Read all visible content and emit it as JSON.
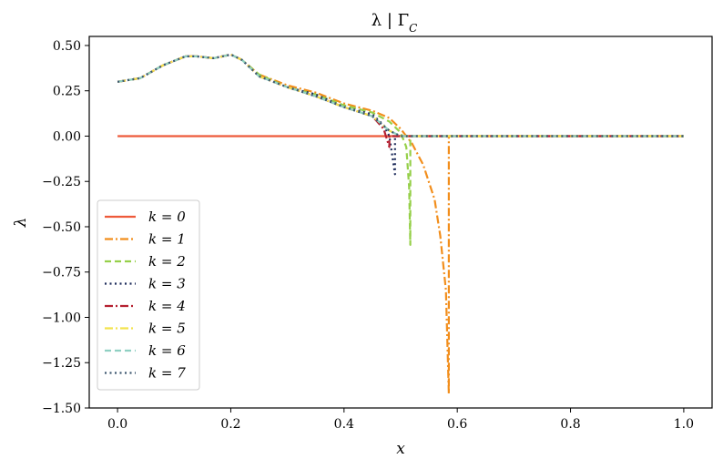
{
  "chart_data": {
    "type": "line",
    "title": "λ | Γ_C",
    "xlabel": "x",
    "ylabel": "λ",
    "xlim": [
      -0.05,
      1.05
    ],
    "ylim": [
      -1.5,
      0.55
    ],
    "grid": false,
    "legend_placement": "lower-left",
    "x_ticks": [
      0.0,
      0.2,
      0.4,
      0.6,
      0.8,
      1.0
    ],
    "x_tick_labels": [
      "0.0",
      "0.2",
      "0.4",
      "0.6",
      "0.8",
      "1.0"
    ],
    "y_ticks": [
      0.5,
      0.25,
      0.0,
      -0.25,
      -0.5,
      -0.75,
      -1.0,
      -1.25,
      -1.5
    ],
    "y_tick_labels": [
      "0.50",
      "0.25",
      "0.00",
      "−0.25",
      "−0.50",
      "−0.75",
      "−1.00",
      "−1.25",
      "−1.50"
    ],
    "series": [
      {
        "name": "k = 0",
        "color": "#ee5a3a",
        "dash": "solid",
        "x": [
          0.0,
          0.25,
          0.5,
          0.75,
          1.0
        ],
        "y": [
          0.0,
          0.0,
          0.0,
          0.0,
          0.0
        ]
      },
      {
        "name": "k = 1",
        "color": "#f28e1c",
        "dash": "dashdot",
        "x": [
          0.0,
          0.04,
          0.08,
          0.12,
          0.14,
          0.17,
          0.2,
          0.22,
          0.25,
          0.3,
          0.35,
          0.4,
          0.45,
          0.48,
          0.5,
          0.52,
          0.54,
          0.56,
          0.57,
          0.58,
          0.585,
          0.585,
          0.6,
          0.7,
          0.8,
          0.9,
          1.0
        ],
        "y": [
          0.3,
          0.32,
          0.39,
          0.44,
          0.44,
          0.43,
          0.45,
          0.42,
          0.34,
          0.28,
          0.24,
          0.18,
          0.14,
          0.1,
          0.04,
          -0.04,
          -0.16,
          -0.35,
          -0.55,
          -0.85,
          -1.42,
          0.0,
          0.0,
          0.0,
          0.0,
          0.0,
          0.0
        ]
      },
      {
        "name": "k = 2",
        "color": "#96d04a",
        "dash": "dashed",
        "x": [
          0.0,
          0.04,
          0.08,
          0.12,
          0.14,
          0.17,
          0.2,
          0.22,
          0.25,
          0.3,
          0.35,
          0.4,
          0.45,
          0.48,
          0.5,
          0.51,
          0.515,
          0.517,
          0.517,
          0.52,
          0.6,
          0.7,
          0.8,
          0.9,
          1.0
        ],
        "y": [
          0.3,
          0.32,
          0.39,
          0.44,
          0.44,
          0.43,
          0.45,
          0.42,
          0.34,
          0.27,
          0.23,
          0.17,
          0.13,
          0.08,
          0.02,
          -0.06,
          -0.28,
          -0.6,
          0.0,
          0.0,
          0.0,
          0.0,
          0.0,
          0.0,
          0.0
        ]
      },
      {
        "name": "k = 3",
        "color": "#1c2a5a",
        "dash": "dotted",
        "x": [
          0.0,
          0.04,
          0.08,
          0.12,
          0.14,
          0.17,
          0.2,
          0.22,
          0.25,
          0.3,
          0.35,
          0.4,
          0.45,
          0.47,
          0.48,
          0.49,
          0.49,
          0.5,
          0.6,
          0.7,
          0.8,
          0.9,
          1.0
        ],
        "y": [
          0.3,
          0.32,
          0.39,
          0.44,
          0.44,
          0.43,
          0.45,
          0.42,
          0.33,
          0.27,
          0.23,
          0.16,
          0.12,
          0.06,
          0.0,
          -0.21,
          0.0,
          0.0,
          0.0,
          0.0,
          0.0,
          0.0,
          0.0
        ]
      },
      {
        "name": "k = 4",
        "color": "#b52030",
        "dash": "dashdot",
        "x": [
          0.0,
          0.04,
          0.08,
          0.12,
          0.14,
          0.17,
          0.2,
          0.22,
          0.25,
          0.3,
          0.35,
          0.4,
          0.45,
          0.47,
          0.48,
          0.48,
          0.5,
          0.6,
          0.7,
          0.8,
          0.9,
          1.0
        ],
        "y": [
          0.3,
          0.32,
          0.39,
          0.44,
          0.44,
          0.43,
          0.45,
          0.42,
          0.33,
          0.27,
          0.22,
          0.16,
          0.11,
          0.04,
          -0.06,
          0.0,
          0.0,
          0.0,
          0.0,
          0.0,
          0.0,
          0.0
        ]
      },
      {
        "name": "k = 5",
        "color": "#f3e34c",
        "dash": "dashdot",
        "x": [
          0.0,
          0.04,
          0.08,
          0.12,
          0.14,
          0.17,
          0.2,
          0.22,
          0.25,
          0.3,
          0.35,
          0.4,
          0.45,
          0.48,
          0.5,
          0.6,
          0.7,
          0.8,
          0.9,
          1.0
        ],
        "y": [
          0.3,
          0.32,
          0.39,
          0.44,
          0.44,
          0.43,
          0.45,
          0.42,
          0.33,
          0.27,
          0.22,
          0.16,
          0.11,
          0.03,
          0.0,
          0.0,
          0.0,
          0.0,
          0.0,
          0.0
        ]
      },
      {
        "name": "k = 6",
        "color": "#8fd0c2",
        "dash": "dashed",
        "x": [
          0.0,
          0.04,
          0.08,
          0.12,
          0.14,
          0.17,
          0.2,
          0.22,
          0.25,
          0.3,
          0.35,
          0.4,
          0.45,
          0.48,
          0.5,
          0.6,
          0.7,
          0.8,
          0.9,
          1.0
        ],
        "y": [
          0.3,
          0.32,
          0.39,
          0.44,
          0.44,
          0.43,
          0.45,
          0.42,
          0.33,
          0.27,
          0.22,
          0.16,
          0.11,
          0.03,
          0.0,
          0.0,
          0.0,
          0.0,
          0.0,
          0.0
        ]
      },
      {
        "name": "k = 7",
        "color": "#3e5870",
        "dash": "dotted",
        "x": [
          0.0,
          0.04,
          0.08,
          0.12,
          0.14,
          0.17,
          0.2,
          0.22,
          0.25,
          0.3,
          0.35,
          0.4,
          0.45,
          0.48,
          0.5,
          0.6,
          0.7,
          0.8,
          0.9,
          1.0
        ],
        "y": [
          0.3,
          0.32,
          0.39,
          0.44,
          0.44,
          0.43,
          0.45,
          0.42,
          0.33,
          0.27,
          0.22,
          0.16,
          0.11,
          0.03,
          0.0,
          0.0,
          0.0,
          0.0,
          0.0,
          0.0
        ]
      }
    ]
  }
}
